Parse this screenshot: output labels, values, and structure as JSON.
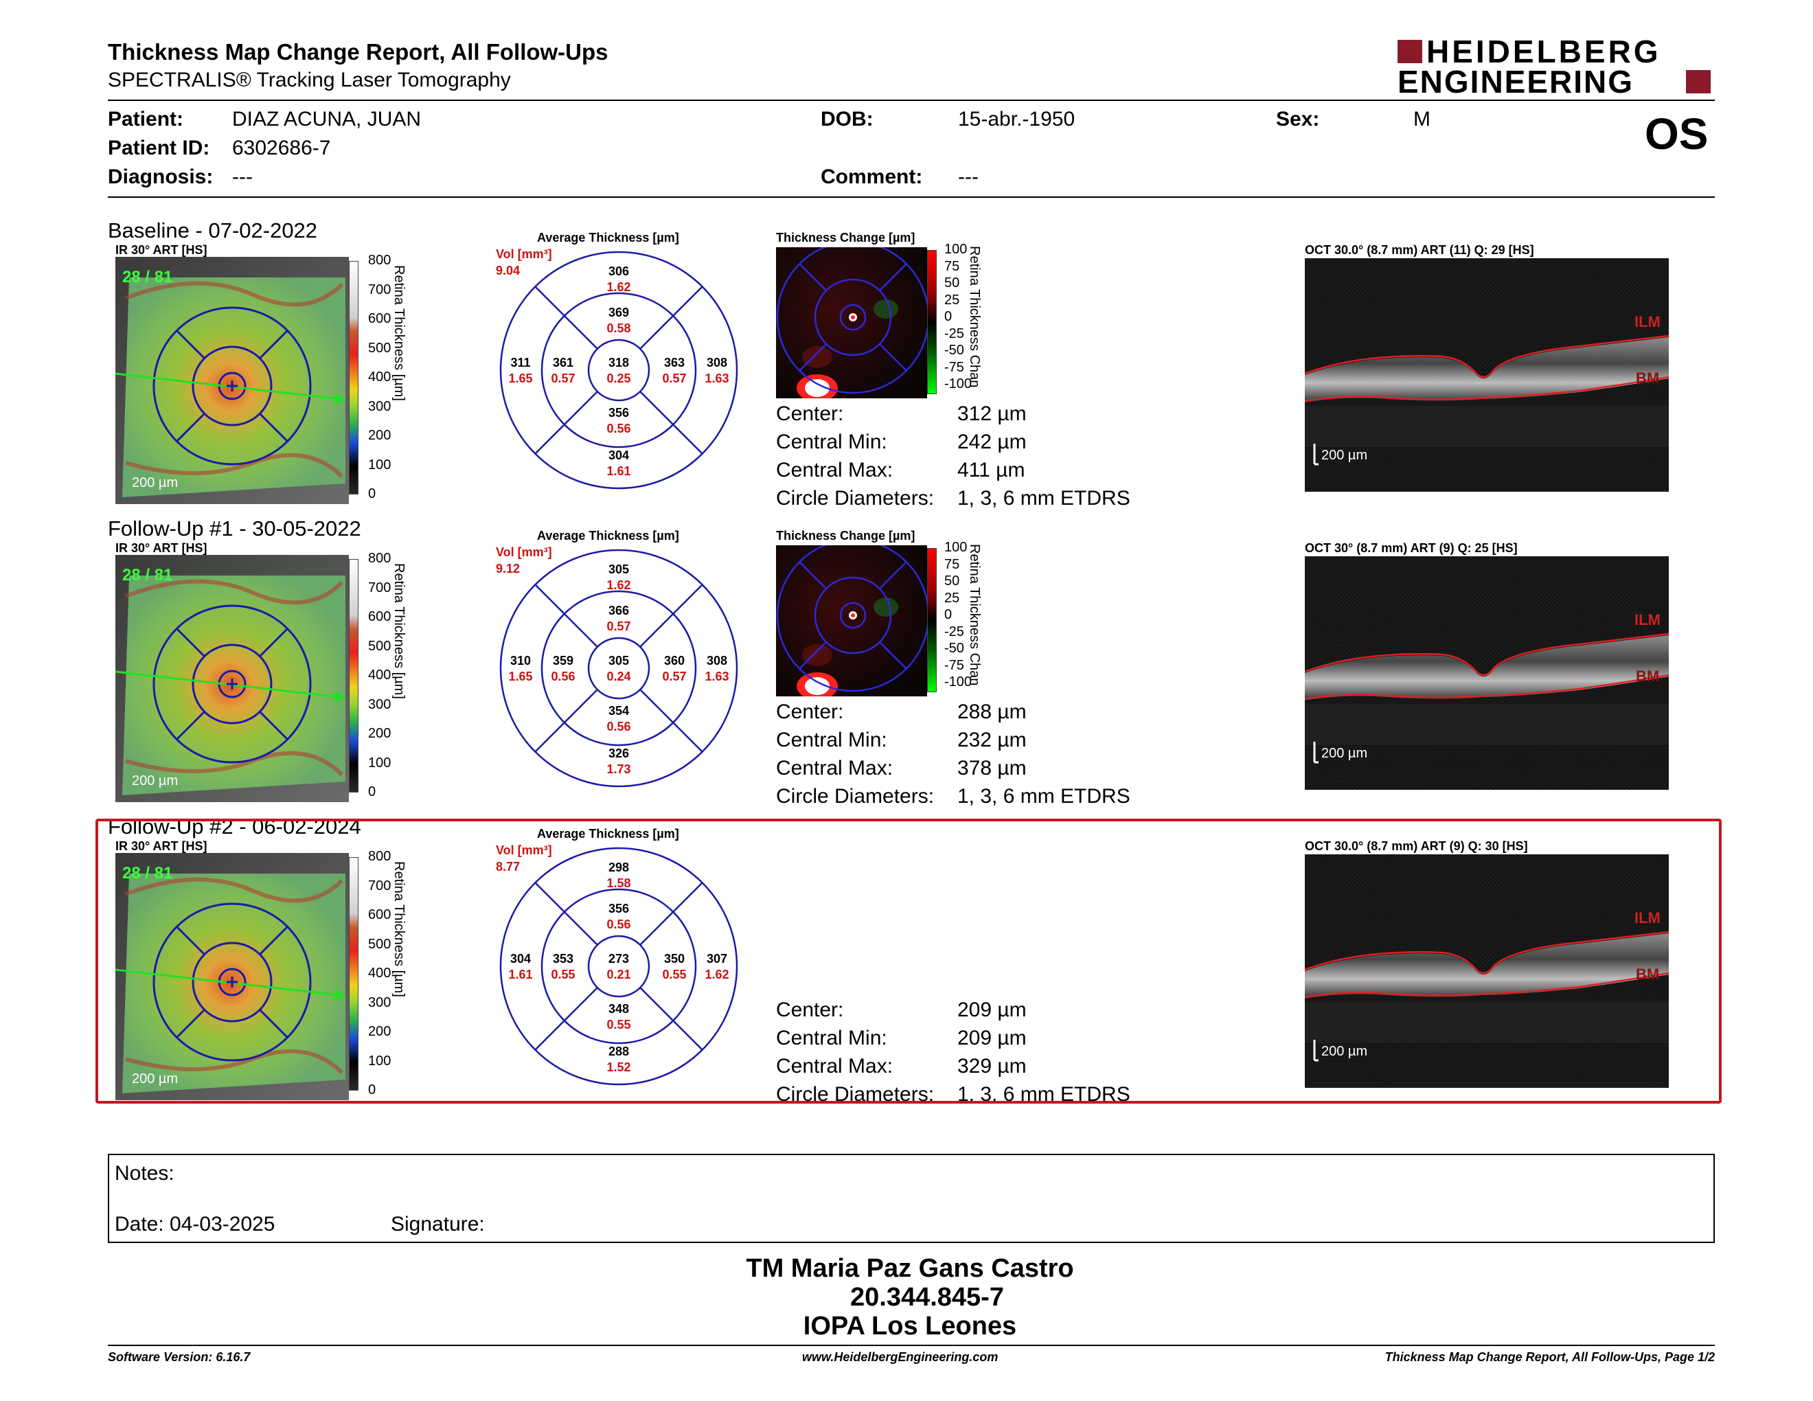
{
  "header": {
    "title": "Thickness Map Change Report, All Follow-Ups",
    "subtitle": "SPECTRALIS® Tracking Laser Tomography",
    "logo_line1": "HEIDELBERG",
    "logo_line2": "ENGINEERING",
    "brand_color": "#8b1a2b"
  },
  "patient": {
    "patient_label": "Patient:",
    "patient_value": "DIAZ ACUNA, JUAN",
    "id_label": "Patient ID:",
    "id_value": "6302686-7",
    "diag_label": "Diagnosis:",
    "diag_value": "---",
    "dob_label": "DOB:",
    "dob_value": "15-abr.-1950",
    "comment_label": "Comment:",
    "comment_value": "---",
    "sex_label": "Sex:",
    "sex_value": "M",
    "eye": "OS"
  },
  "common": {
    "ir_title_b": "IR 30° ART [HS]",
    "avg_title": "Average Thickness [µm]",
    "vol_label": "Vol [mm³]",
    "chg_title": "Thickness Change [µm]",
    "scale_labels": [
      "800",
      "700",
      "600",
      "500",
      "400",
      "300",
      "200",
      "100",
      "0"
    ],
    "scale_title": "Retina Thickness [µm]",
    "chg_labels": [
      "100",
      "75",
      "50",
      "25",
      "0",
      "-25",
      "-50",
      "-75",
      "-100"
    ],
    "chg_scale_title": "Retina Thickness Chan",
    "scalebar": "200 µm",
    "ilm": "ILM",
    "bm": "BM",
    "quality": "28 / 81",
    "stat_center": "Center:",
    "stat_min": "Central Min:",
    "stat_max": "Central Max:",
    "stat_diam": "Circle Diameters:",
    "diam_value": "1, 3, 6 mm ETDRS"
  },
  "exams": [
    {
      "title": "Baseline - 07-02-2022",
      "vol": "9.04",
      "oct_title": "OCT 30.0° (8.7 mm) ART (11) Q: 29 [HS]",
      "center": "312 µm",
      "cmin": "242 µm",
      "cmax": "411 µm",
      "sectors": {
        "outer_sup": [
          "306",
          "1.62"
        ],
        "inner_sup": [
          "369",
          "0.58"
        ],
        "outer_tmp": [
          "311",
          "1.65"
        ],
        "inner_tmp": [
          "361",
          "0.57"
        ],
        "center": [
          "318",
          "0.25"
        ],
        "inner_nas": [
          "363",
          "0.57"
        ],
        "outer_nas": [
          "308",
          "1.63"
        ],
        "inner_inf": [
          "356",
          "0.56"
        ],
        "outer_inf": [
          "304",
          "1.61"
        ]
      }
    },
    {
      "title": "Follow-Up #1 - 30-05-2022",
      "vol": "9.12",
      "oct_title": "OCT 30° (8.7 mm) ART (9) Q: 25 [HS]",
      "center": "288 µm",
      "cmin": "232 µm",
      "cmax": "378 µm",
      "sectors": {
        "outer_sup": [
          "305",
          "1.62"
        ],
        "inner_sup": [
          "366",
          "0.57"
        ],
        "outer_tmp": [
          "310",
          "1.65"
        ],
        "inner_tmp": [
          "359",
          "0.56"
        ],
        "center": [
          "305",
          "0.24"
        ],
        "inner_nas": [
          "360",
          "0.57"
        ],
        "outer_nas": [
          "308",
          "1.63"
        ],
        "inner_inf": [
          "354",
          "0.56"
        ],
        "outer_inf": [
          "326",
          "1.73"
        ]
      }
    },
    {
      "title": "Follow-Up #2 - 06-02-2024",
      "vol": "8.77",
      "oct_title": "OCT 30.0° (8.7 mm) ART (9) Q: 30 [HS]",
      "center": "209 µm",
      "cmin": "209 µm",
      "cmax": "329 µm",
      "sectors": {
        "outer_sup": [
          "298",
          "1.58"
        ],
        "inner_sup": [
          "356",
          "0.56"
        ],
        "outer_tmp": [
          "304",
          "1.61"
        ],
        "inner_tmp": [
          "353",
          "0.55"
        ],
        "center": [
          "273",
          "0.21"
        ],
        "inner_nas": [
          "350",
          "0.55"
        ],
        "outer_nas": [
          "307",
          "1.62"
        ],
        "inner_inf": [
          "348",
          "0.55"
        ],
        "outer_inf": [
          "288",
          "1.52"
        ]
      }
    }
  ],
  "notes": {
    "notes_label": "Notes:",
    "date_label": "Date: 04-03-2025",
    "signature_label": "Signature:"
  },
  "signer": {
    "name": "TM Maria Paz Gans Castro",
    "rut": "20.344.845-7",
    "org": "IOPA Los Leones"
  },
  "footer": {
    "software": "Software Version: 6.16.7",
    "website": "www.HeidelbergEngineering.com",
    "page": "Thickness Map Change Report, All Follow-Ups, Page 1/2"
  }
}
